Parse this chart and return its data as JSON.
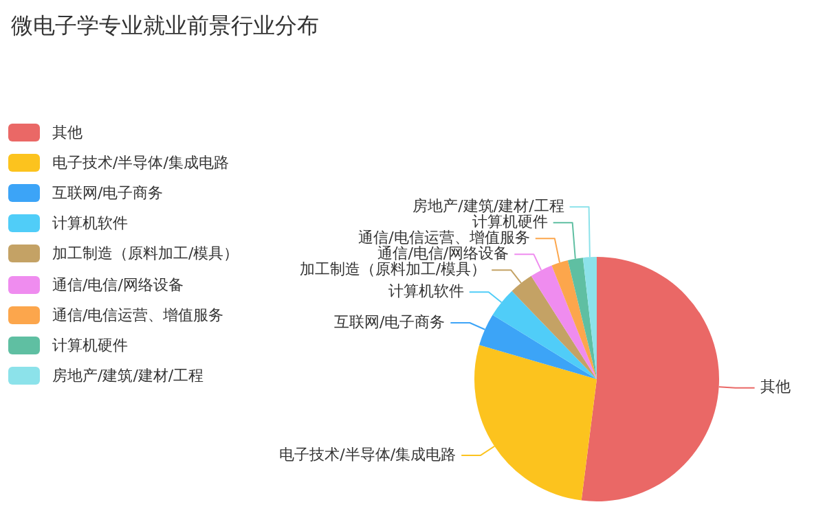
{
  "chart_data": {
    "type": "pie",
    "title": "微电子学专业就业前景行业分布",
    "categories": [
      "其他",
      "电子技术/半导体/集成电路",
      "互联网/电子商务",
      "计算机软件",
      "加工制造（原料加工/模具）",
      "通信/电信/网络设备",
      "通信/电信运营、增值服务",
      "计算机硬件",
      "房地产/建筑/建材/工程"
    ],
    "values": [
      52,
      27.5,
      4.3,
      4,
      3.2,
      3,
      2.2,
      2,
      1.8
    ],
    "colors": [
      "#ea6866",
      "#fcc31e",
      "#3ca4f7",
      "#50cdf8",
      "#c4a265",
      "#ef8cef",
      "#fca64c",
      "#5fbfa2",
      "#8ce2ea"
    ],
    "legend": "left"
  }
}
